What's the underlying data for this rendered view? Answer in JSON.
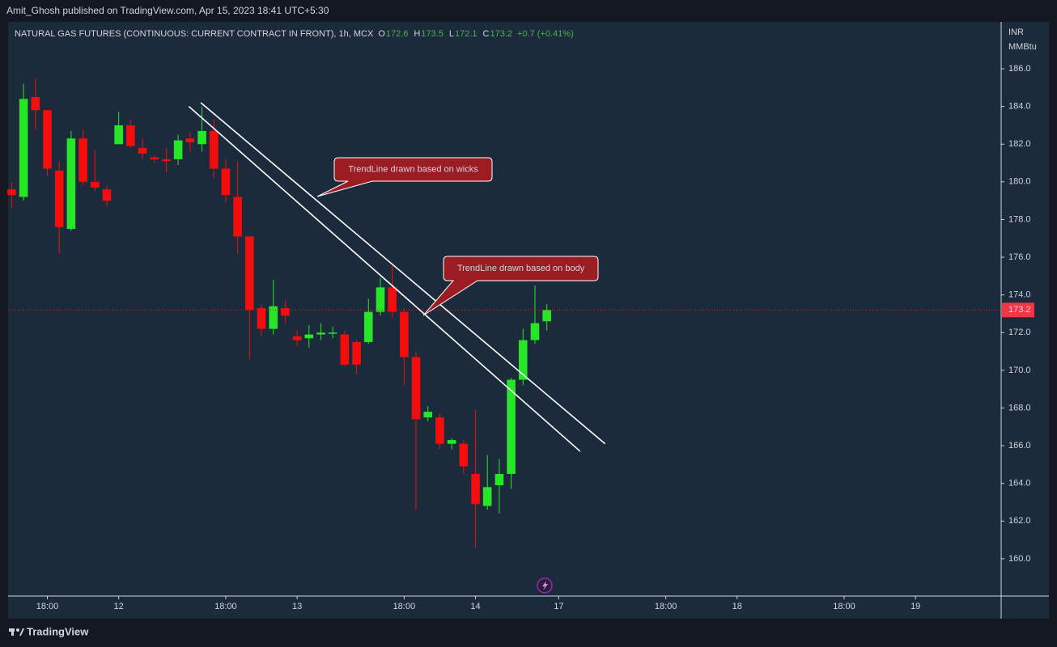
{
  "header": {
    "publisher": "Amit_Ghosh published on TradingView.com, Apr 15, 2023 18:41 UTC+5:30",
    "brand": "TradingView"
  },
  "chart_data": {
    "type": "candlestick",
    "title": "NATURAL GAS FUTURES (CONTINUOUS: CURRENT CONTRACT IN FRONT), 1h, MCX",
    "ohlc_letters": [
      "O",
      "H",
      "L",
      "C"
    ],
    "change": "+0.7 (+0.41%)",
    "y_unit": [
      "INR",
      "MMBtu"
    ],
    "up_color": "#27e627",
    "down_color": "#f40d0d",
    "open": [
      179.6,
      179.2,
      184.5,
      183.8,
      180.6,
      177.5,
      182.3,
      180.0,
      179.6,
      182.0,
      183.0,
      181.8,
      181.3,
      181.2,
      181.2,
      182.3,
      182.0,
      182.7,
      180.7,
      179.2,
      177.1,
      173.3,
      172.2,
      173.3,
      171.8,
      171.7,
      171.9,
      172.0,
      171.9,
      171.5,
      171.5,
      173.1,
      174.4,
      173.1,
      170.7,
      167.5,
      167.5,
      166.1,
      166.1,
      164.5,
      162.8,
      163.9,
      164.5,
      169.5,
      171.6,
      172.6
    ],
    "high": [
      180.0,
      185.2,
      185.5,
      183.8,
      181.1,
      182.7,
      182.8,
      181.7,
      179.8,
      183.7,
      183.3,
      182.3,
      181.4,
      181.8,
      182.5,
      182.6,
      184.0,
      183.3,
      181.2,
      181.1,
      177.1,
      173.5,
      174.8,
      173.7,
      172.1,
      172.4,
      172.5,
      172.3,
      172.1,
      171.6,
      173.8,
      174.9,
      175.6,
      173.3,
      171.0,
      168.1,
      167.7,
      166.4,
      166.3,
      167.9,
      165.5,
      165.3,
      169.6,
      172.2,
      174.5,
      173.5
    ],
    "low": [
      178.6,
      179.0,
      182.8,
      180.3,
      176.2,
      177.4,
      179.8,
      179.5,
      178.7,
      182.0,
      181.8,
      181.2,
      181.0,
      180.5,
      180.9,
      181.6,
      181.6,
      180.2,
      178.9,
      176.2,
      170.6,
      171.8,
      171.9,
      172.5,
      171.3,
      171.2,
      171.6,
      171.7,
      170.2,
      169.8,
      171.4,
      172.9,
      172.8,
      169.2,
      162.6,
      167.3,
      165.8,
      165.8,
      164.5,
      160.6,
      162.6,
      162.4,
      163.7,
      169.2,
      171.4,
      172.1
    ],
    "close": [
      179.3,
      184.4,
      183.8,
      180.7,
      177.6,
      182.3,
      180.0,
      179.7,
      179.0,
      183.0,
      181.9,
      181.5,
      181.2,
      181.1,
      182.2,
      182.1,
      182.7,
      180.7,
      179.3,
      177.1,
      173.2,
      172.2,
      173.4,
      172.9,
      171.6,
      171.9,
      172.0,
      172.0,
      170.3,
      170.3,
      173.1,
      174.4,
      173.1,
      170.7,
      167.4,
      167.8,
      166.1,
      166.3,
      164.9,
      162.9,
      163.8,
      164.5,
      169.5,
      171.6,
      172.5,
      173.2
    ],
    "xlim": [
      -0.3,
      83.2
    ],
    "xticks": [
      {
        "value": 3,
        "label": "18:00"
      },
      {
        "value": 9,
        "label": "12"
      },
      {
        "value": 18,
        "label": "18:00"
      },
      {
        "value": 24,
        "label": "13"
      },
      {
        "value": 33,
        "label": "18:00"
      },
      {
        "value": 39,
        "label": "14"
      },
      {
        "value": 46,
        "label": "17"
      },
      {
        "value": 55,
        "label": "18:00"
      },
      {
        "value": 61,
        "label": "18"
      },
      {
        "value": 70,
        "label": "18:00"
      },
      {
        "value": 76,
        "label": "19"
      }
    ],
    "ylim": [
      158.02,
      188.49
    ],
    "yticks": [
      {
        "value": 160,
        "label": "160.0"
      },
      {
        "value": 162,
        "label": "162.0"
      },
      {
        "value": 164,
        "label": "164.0"
      },
      {
        "value": 166,
        "label": "166.0"
      },
      {
        "value": 168,
        "label": "168.0"
      },
      {
        "value": 170,
        "label": "170.0"
      },
      {
        "value": 172,
        "label": "172.0"
      },
      {
        "value": 174,
        "label": "174.0"
      },
      {
        "value": 176,
        "label": "176.0"
      },
      {
        "value": 178,
        "label": "178.0"
      },
      {
        "value": 180,
        "label": "180.0"
      },
      {
        "value": 182,
        "label": "182.0"
      },
      {
        "value": 184,
        "label": "184.0"
      },
      {
        "value": 186,
        "label": "186.0"
      }
    ],
    "trendlines": [
      {
        "x": [
          15.9,
          49.9
        ],
        "y": [
          184.2,
          166.1
        ]
      },
      {
        "x": [
          14.9,
          47.8
        ],
        "y": [
          184.0,
          165.7
        ]
      }
    ],
    "annotations": [
      "TrendLine drawn based on wicks",
      "TrendLine drawn based on body"
    ]
  }
}
